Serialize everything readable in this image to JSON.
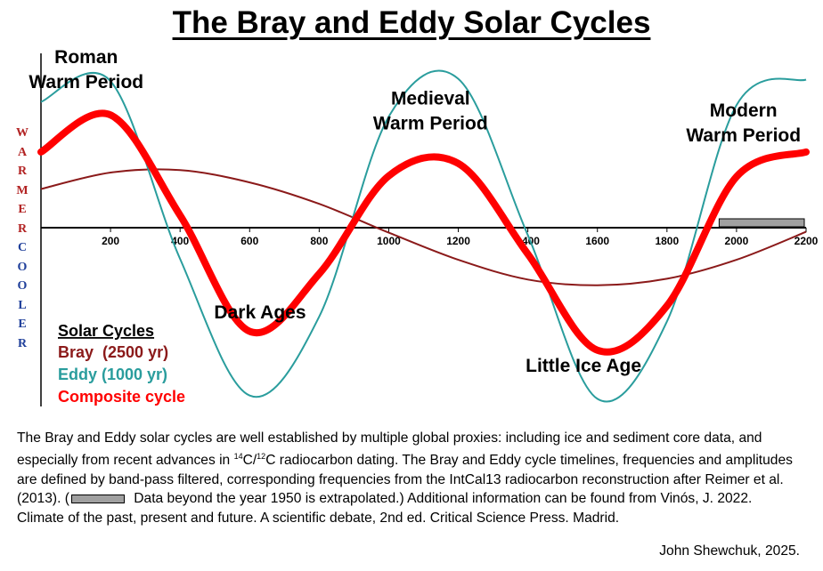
{
  "chart_data": {
    "type": "line",
    "title": "The Bray and Eddy Solar Cycles",
    "xlim": [
      0,
      2200
    ],
    "ylim": [
      -2.5,
      2.5
    ],
    "x_ticks": [
      "200",
      "400",
      "600",
      "800",
      "1000",
      "1200",
      "1400",
      "1600",
      "1800",
      "2000",
      "2200"
    ],
    "y_label_top": "WARMER",
    "y_label_bottom": "COOLER",
    "grid": false,
    "legend": {
      "heading": "Solar Cycles",
      "entries": [
        "Bray  (2500 yr)",
        "Eddy (1000 yr)",
        "Composite cycle"
      ],
      "placement": "bottom-left"
    },
    "series": [
      {
        "name": "Bray  (2500 yr)",
        "color": "#8b1a1a",
        "period": 2500,
        "values": {
          "x": [
            0,
            200,
            400,
            600,
            800,
            1000,
            1200,
            1400,
            1600,
            1800,
            2000,
            2200
          ],
          "y": [
            0.47,
            0.67,
            0.7,
            0.55,
            0.29,
            -0.06,
            -0.39,
            -0.63,
            -0.7,
            -0.62,
            -0.39,
            -0.05
          ]
        }
      },
      {
        "name": "Eddy (1000 yr)",
        "color": "#2a9d9d",
        "period": 1000,
        "values": {
          "x": [
            0,
            200,
            400,
            600,
            800,
            1000,
            1200,
            1400,
            1600,
            1800,
            2000,
            2200
          ],
          "y": [
            1.53,
            1.78,
            -0.38,
            -2.04,
            -1.08,
            1.35,
            1.81,
            -0.09,
            -2.08,
            -1.14,
            1.49,
            1.8
          ]
        }
      },
      {
        "name": "Composite cycle",
        "color": "#ff0000",
        "values": {
          "x": [
            0,
            200,
            400,
            600,
            800,
            1000,
            1200,
            1400,
            1600,
            1800,
            2000,
            2200
          ],
          "y": [
            0.92,
            1.37,
            0.15,
            -1.26,
            -0.56,
            0.63,
            0.78,
            -0.32,
            -1.49,
            -0.95,
            0.62,
            0.92
          ]
        }
      }
    ],
    "extrapolated_range": [
      1950,
      2200
    ],
    "annotations": [
      {
        "text": "Roman\nWarm Period",
        "x": 130,
        "y": 2.0
      },
      {
        "text": "Medieval\nWarm Period",
        "x": 1120,
        "y": 1.5
      },
      {
        "text": "Modern\nWarm Period",
        "x": 2020,
        "y": 1.35
      },
      {
        "text": "Dark Ages",
        "x": 630,
        "y": -1.1
      },
      {
        "text": "Little Ice Age",
        "x": 1560,
        "y": -1.75
      }
    ]
  },
  "caption": {
    "part1": "The Bray and Eddy solar cycles are well established by multiple global proxies: including ice and sediment core data, and especially from recent advances in ",
    "iso1": "14",
    "mid": "C/",
    "iso2": "12",
    "part2": "C radiocarbon dating.  The Bray and Eddy cycle timelines, frequencies and amplitudes are defined by band-pass filtered, corresponding frequencies from the IntCal13 radiocarbon reconstruction after Reimer et al. (2013).  (",
    "part3": " Data beyond the year 1950 is extrapolated.)  Additional information can be found from Vinós, J. 2022. Climate of the past, present and future. A scientific debate, 2nd ed. Critical Science Press. Madrid."
  },
  "credit": "John Shewchuk, 2025.",
  "colors": {
    "bray": "#8b1a1a",
    "eddy": "#2a9d9d",
    "composite": "#ff0000",
    "warmer_label": "#b22222",
    "cooler_label": "#1f3f9a",
    "extrapolation_bar": "#a0a0a0"
  }
}
